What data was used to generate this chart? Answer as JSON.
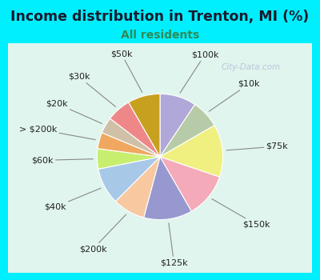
{
  "title": "Income distribution in Trenton, MI (%)",
  "subtitle": "All residents",
  "title_color": "#1a1a2e",
  "subtitle_color": "#2e8b57",
  "background_cyan": "#00efff",
  "background_chart": "#e0f5ee",
  "watermark": "City-Data.com",
  "labels": [
    "$100k",
    "$10k",
    "$75k",
    "$150k",
    "$125k",
    "$200k",
    "$40k",
    "$60k",
    "> $200k",
    "$20k",
    "$30k",
    "$50k"
  ],
  "values": [
    9,
    7,
    13,
    11,
    12,
    8,
    9,
    5,
    4,
    4,
    6,
    8
  ],
  "colors": [
    "#b0a8d8",
    "#b8cba8",
    "#f0f080",
    "#f4aab8",
    "#9898d0",
    "#f8c8a0",
    "#a8c8e8",
    "#c8ee70",
    "#f0a860",
    "#d0c0a8",
    "#ee8888",
    "#c8a020"
  ],
  "figsize": [
    4.0,
    3.5
  ],
  "dpi": 100,
  "title_fontsize": 12.5,
  "subtitle_fontsize": 10,
  "label_fontsize": 8
}
